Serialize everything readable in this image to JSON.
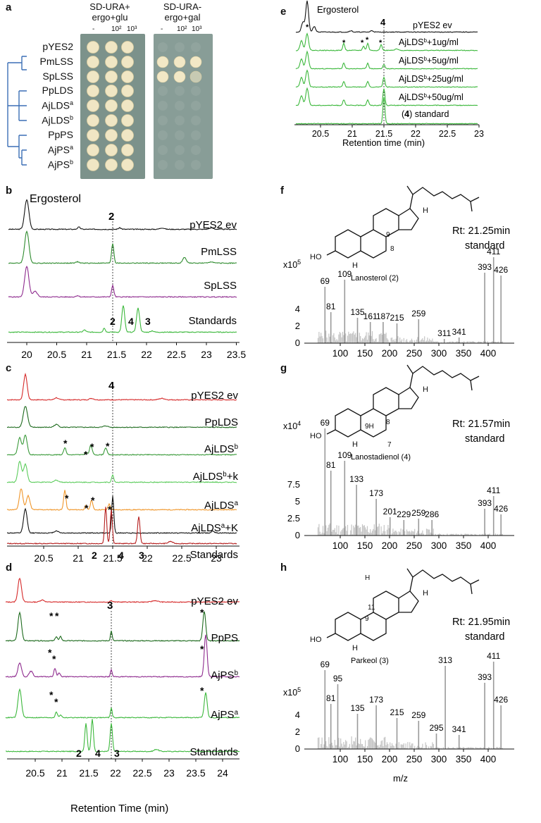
{
  "panel_letters": [
    "a",
    "b",
    "c",
    "d",
    "e",
    "f",
    "g",
    "h"
  ],
  "panel_a": {
    "plate1_title": [
      "SD-URA+",
      "ergo+glu"
    ],
    "plate2_title": [
      "SD-URA-",
      "ergo+gal"
    ],
    "dilutions": [
      "-",
      "10²",
      "10³"
    ],
    "strains": [
      {
        "name": "pYES2",
        "sup": ""
      },
      {
        "name": "PmLSS",
        "sup": ""
      },
      {
        "name": "SpLSS",
        "sup": ""
      },
      {
        "name": "PpLDS",
        "sup": ""
      },
      {
        "name": "AjLDS",
        "sup": "a"
      },
      {
        "name": "AjLDS",
        "sup": "b"
      },
      {
        "name": "PpPS",
        "sup": ""
      },
      {
        "name": "AjPS",
        "sup": "a"
      },
      {
        "name": "AjPS",
        "sup": "b"
      }
    ],
    "growth_on_gal": [
      [
        0,
        0,
        0
      ],
      [
        1,
        1,
        1
      ],
      [
        1,
        1,
        0.6
      ],
      [
        0,
        0,
        0
      ],
      [
        0,
        0,
        0
      ],
      [
        0,
        0,
        0
      ],
      [
        0,
        0,
        0
      ],
      [
        0,
        0,
        0
      ],
      [
        0,
        0,
        0
      ]
    ]
  },
  "panel_b": {
    "top_label": "Ergosterol",
    "marker": "2",
    "traces": [
      {
        "name": "pYES2 ev",
        "color": "#111111"
      },
      {
        "name": "PmLSS",
        "color": "#2e8b2e"
      },
      {
        "name": "SpLSS",
        "color": "#8e2a8e"
      },
      {
        "name": "Standards",
        "color": "#3cb83c"
      }
    ],
    "std_labels": [
      "2",
      "4",
      "3"
    ],
    "x_ticks": [
      "20",
      "20.5",
      "21",
      "21.5",
      "22",
      "22.5",
      "23",
      "23.5"
    ]
  },
  "panel_c": {
    "marker": "4",
    "traces": [
      {
        "name": "pYES2 ev",
        "sup": "",
        "suffix": "",
        "color": "#d62a2a"
      },
      {
        "name": "PpLDS",
        "sup": "",
        "suffix": "",
        "color": "#1e6b1e"
      },
      {
        "name": "AjLDS",
        "sup": "b",
        "suffix": "",
        "color": "#3a9a3a"
      },
      {
        "name": "AjLDS",
        "sup": "b",
        "suffix": "+k",
        "color": "#5ccc5c"
      },
      {
        "name": "AjLDS",
        "sup": "a",
        "suffix": "",
        "color": "#f0962a"
      },
      {
        "name": "AjLDS",
        "sup": "a",
        "suffix": "+K",
        "color": "#111111"
      },
      {
        "name": "Standards",
        "sup": "",
        "suffix": "",
        "color": "#b51e1e"
      }
    ],
    "std_labels": [
      "2",
      "4",
      "3"
    ],
    "x_ticks": [
      "20.5",
      "21",
      "21.5",
      "22",
      "22.5",
      "23"
    ]
  },
  "panel_d": {
    "marker": "3",
    "traces": [
      {
        "name": "pYES2 ev",
        "sup": "",
        "color": "#d62a2a"
      },
      {
        "name": "PpPS",
        "sup": "",
        "color": "#1e6b1e"
      },
      {
        "name": "AjPS",
        "sup": "b",
        "color": "#8e2a8e"
      },
      {
        "name": "AjPS",
        "sup": "a",
        "color": "#3cb83c"
      },
      {
        "name": "Standards",
        "sup": "",
        "color": "#3cb83c"
      }
    ],
    "std_labels": [
      "2",
      "4",
      "3"
    ],
    "x_ticks": [
      "20.5",
      "21",
      "21.5",
      "22",
      "22.5",
      "23",
      "23.5",
      "24"
    ],
    "xlabel": "Retention Time (min)"
  },
  "panel_e": {
    "top_label": "Ergosterol",
    "marker": "4",
    "traces": [
      {
        "text": "pYES2 ev",
        "color": "#111111"
      },
      {
        "text": "AjLDS",
        "sup": "b",
        "after": "+1ug/ml",
        "color": "#3cb83c"
      },
      {
        "text": "AjLDS",
        "sup": "b",
        "after": "+5ug/ml",
        "color": "#3cb83c"
      },
      {
        "text": "AjLDS",
        "sup": "b",
        "after": "+25ug/ml",
        "color": "#3cb83c"
      },
      {
        "text": "AjLDS",
        "sup": "b",
        "after": "+50ug/ml",
        "color": "#3cb83c"
      },
      {
        "text": "(4) standard",
        "color": "#3cb83c"
      }
    ],
    "x_ticks": [
      "20.5",
      "21",
      "21.5",
      "22",
      "22.5",
      "23"
    ],
    "xlabel": "Retention time (min)"
  },
  "panel_f": {
    "compound": "Lanosterol (2)",
    "rt": "Rt: 21.25min",
    "rt_sub": "standard",
    "yscale": "x10",
    "yscale_exp": "5",
    "y_ticks": [
      "4",
      "2",
      "0"
    ],
    "x_ticks": [
      "100",
      "150",
      "200",
      "250",
      "300",
      "350",
      "400"
    ],
    "peak_labels": [
      "69",
      "81",
      "109",
      "135",
      "161",
      "187",
      "215",
      "259",
      "311",
      "341",
      "393",
      "411",
      "426"
    ],
    "structure_labels": [
      "HO",
      "H",
      "H",
      "9",
      "8"
    ]
  },
  "panel_g": {
    "compound": "Lanostadienol (4)",
    "rt": "Rt: 21.57min",
    "rt_sub": "standard",
    "yscale": "x10",
    "yscale_exp": "4",
    "y_ticks": [
      "7.5",
      "5",
      "2.5",
      "0"
    ],
    "x_ticks": [
      "100",
      "150",
      "200",
      "250",
      "300",
      "350",
      "400"
    ],
    "peak_labels": [
      "69",
      "81",
      "109",
      "133",
      "173",
      "201",
      "229",
      "259",
      "286",
      "393",
      "411",
      "426"
    ],
    "structure_labels": [
      "HO",
      "H",
      "H",
      "9H",
      "8",
      "7"
    ]
  },
  "panel_h": {
    "compound": "Parkeol (3)",
    "rt": "Rt: 21.95min",
    "rt_sub": "standard",
    "yscale": "x10",
    "yscale_exp": "5",
    "y_ticks": [
      "4",
      "2",
      "0"
    ],
    "x_ticks": [
      "100",
      "150",
      "200",
      "250",
      "300",
      "350",
      "400"
    ],
    "peak_labels": [
      "69",
      "81",
      "95",
      "135",
      "173",
      "215",
      "259",
      "295",
      "313",
      "341",
      "393",
      "411",
      "426"
    ],
    "structure_labels": [
      "HO",
      "H",
      "H",
      "H",
      "11",
      "9"
    ],
    "xlabel": "m/z"
  }
}
